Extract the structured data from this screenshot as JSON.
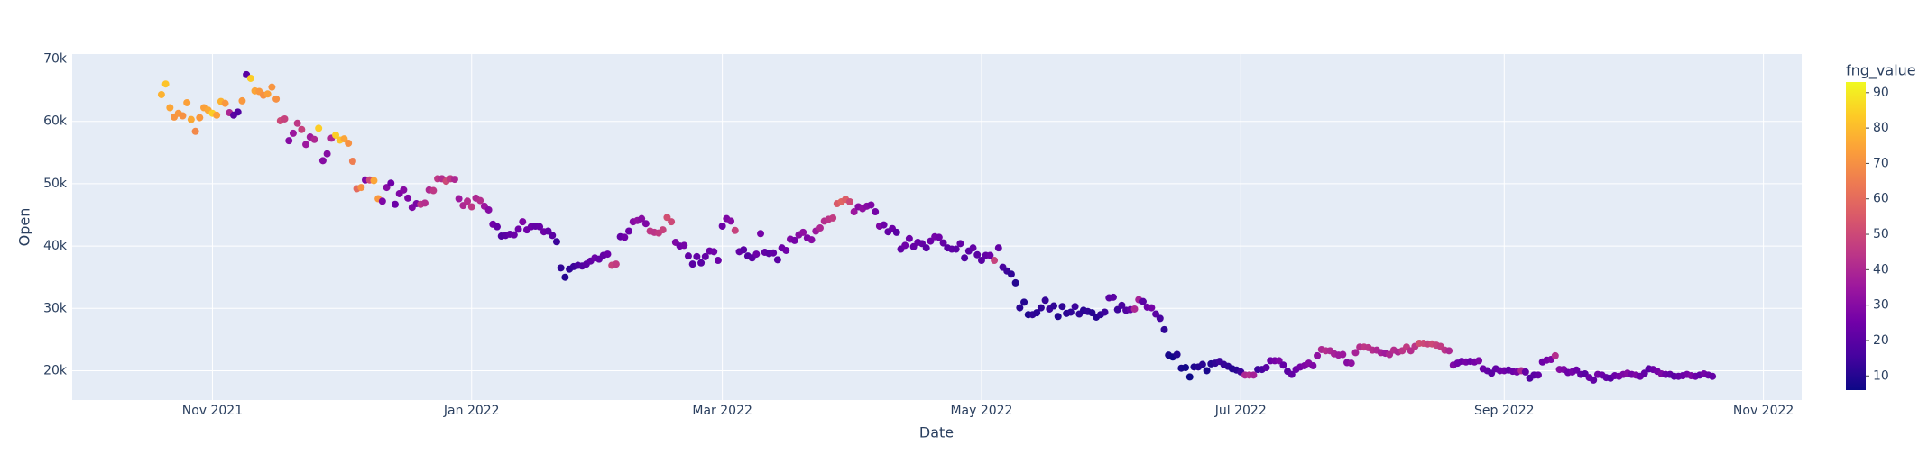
{
  "chart_data": {
    "type": "scatter",
    "x_label": "Date",
    "y_label": "Open",
    "colorbar_title": "fng_value",
    "grid": true,
    "xlim": [
      "2021-09-29",
      "2022-11-10"
    ],
    "xticks": [
      {
        "value": "2021-11-01",
        "label": "Nov 2021"
      },
      {
        "value": "2022-01-01",
        "label": "Jan 2022"
      },
      {
        "value": "2022-03-01",
        "label": "Mar 2022"
      },
      {
        "value": "2022-05-01",
        "label": "May 2022"
      },
      {
        "value": "2022-07-01",
        "label": "Jul 2022"
      },
      {
        "value": "2022-09-01",
        "label": "Sep 2022"
      },
      {
        "value": "2022-11-01",
        "label": "Nov 2022"
      }
    ],
    "ylim": [
      15300,
      70800
    ],
    "yticks": [
      {
        "value": 20000,
        "label": "20k"
      },
      {
        "value": 30000,
        "label": "30k"
      },
      {
        "value": 40000,
        "label": "40k"
      },
      {
        "value": 50000,
        "label": "50k"
      },
      {
        "value": 60000,
        "label": "60k"
      },
      {
        "value": 70000,
        "label": "70k"
      }
    ],
    "clim": [
      6,
      93
    ],
    "colorbar_ticks": [
      10,
      20,
      30,
      40,
      50,
      60,
      70,
      80,
      90
    ],
    "colorscale": [
      "#0d0887",
      "#46039f",
      "#7201a8",
      "#9c179e",
      "#bd3786",
      "#d8576b",
      "#ed7953",
      "#fb9f3a",
      "#fdca26",
      "#f0f921"
    ],
    "x": [
      "2021-10-20",
      "2021-10-21",
      "2021-10-22",
      "2021-10-23",
      "2021-10-24",
      "2021-10-25",
      "2021-10-26",
      "2021-10-27",
      "2021-10-28",
      "2021-10-29",
      "2021-10-30",
      "2021-10-31",
      "2021-11-01",
      "2021-11-02",
      "2021-11-03",
      "2021-11-04",
      "2021-11-05",
      "2021-11-06",
      "2021-11-07",
      "2021-11-08",
      "2021-11-09",
      "2021-11-10",
      "2021-11-11",
      "2021-11-12",
      "2021-11-13",
      "2021-11-14",
      "2021-11-15",
      "2021-11-16",
      "2021-11-17",
      "2021-11-18",
      "2021-11-19",
      "2021-11-20",
      "2021-11-21",
      "2021-11-22",
      "2021-11-23",
      "2021-11-24",
      "2021-11-25",
      "2021-11-26",
      "2021-11-27",
      "2021-11-28",
      "2021-11-29",
      "2021-11-30",
      "2021-12-01",
      "2021-12-02",
      "2021-12-03",
      "2021-12-04",
      "2021-12-05",
      "2021-12-06",
      "2021-12-07",
      "2021-12-08",
      "2021-12-09",
      "2021-12-10",
      "2021-12-11",
      "2021-12-12",
      "2021-12-13",
      "2021-12-14",
      "2021-12-15",
      "2021-12-16",
      "2021-12-17",
      "2021-12-18",
      "2021-12-19",
      "2021-12-20",
      "2021-12-21",
      "2021-12-22",
      "2021-12-23",
      "2021-12-24",
      "2021-12-25",
      "2021-12-26",
      "2021-12-27",
      "2021-12-28",
      "2021-12-29",
      "2021-12-30",
      "2021-12-31",
      "2022-01-01",
      "2022-01-02",
      "2022-01-03",
      "2022-01-04",
      "2022-01-05",
      "2022-01-06",
      "2022-01-07",
      "2022-01-08",
      "2022-01-09",
      "2022-01-10",
      "2022-01-11",
      "2022-01-12",
      "2022-01-13",
      "2022-01-14",
      "2022-01-15",
      "2022-01-16",
      "2022-01-17",
      "2022-01-18",
      "2022-01-19",
      "2022-01-20",
      "2022-01-21",
      "2022-01-22",
      "2022-01-23",
      "2022-01-24",
      "2022-01-25",
      "2022-01-26",
      "2022-01-27",
      "2022-01-28",
      "2022-01-29",
      "2022-01-30",
      "2022-01-31",
      "2022-02-01",
      "2022-02-02",
      "2022-02-03",
      "2022-02-04",
      "2022-02-05",
      "2022-02-06",
      "2022-02-07",
      "2022-02-08",
      "2022-02-09",
      "2022-02-10",
      "2022-02-11",
      "2022-02-12",
      "2022-02-13",
      "2022-02-14",
      "2022-02-15",
      "2022-02-16",
      "2022-02-17",
      "2022-02-18",
      "2022-02-19",
      "2022-02-20",
      "2022-02-21",
      "2022-02-22",
      "2022-02-23",
      "2022-02-24",
      "2022-02-25",
      "2022-02-26",
      "2022-02-27",
      "2022-02-28",
      "2022-03-01",
      "2022-03-02",
      "2022-03-03",
      "2022-03-04",
      "2022-03-05",
      "2022-03-06",
      "2022-03-07",
      "2022-03-08",
      "2022-03-09",
      "2022-03-10",
      "2022-03-11",
      "2022-03-12",
      "2022-03-13",
      "2022-03-14",
      "2022-03-15",
      "2022-03-16",
      "2022-03-17",
      "2022-03-18",
      "2022-03-19",
      "2022-03-20",
      "2022-03-21",
      "2022-03-22",
      "2022-03-23",
      "2022-03-24",
      "2022-03-25",
      "2022-03-26",
      "2022-03-27",
      "2022-03-28",
      "2022-03-29",
      "2022-03-30",
      "2022-03-31",
      "2022-04-01",
      "2022-04-02",
      "2022-04-03",
      "2022-04-04",
      "2022-04-05",
      "2022-04-06",
      "2022-04-07",
      "2022-04-08",
      "2022-04-09",
      "2022-04-10",
      "2022-04-11",
      "2022-04-12",
      "2022-04-13",
      "2022-04-14",
      "2022-04-15",
      "2022-04-16",
      "2022-04-17",
      "2022-04-18",
      "2022-04-19",
      "2022-04-20",
      "2022-04-21",
      "2022-04-22",
      "2022-04-23",
      "2022-04-24",
      "2022-04-25",
      "2022-04-26",
      "2022-04-27",
      "2022-04-28",
      "2022-04-29",
      "2022-04-30",
      "2022-05-01",
      "2022-05-02",
      "2022-05-03",
      "2022-05-04",
      "2022-05-05",
      "2022-05-06",
      "2022-05-07",
      "2022-05-08",
      "2022-05-09",
      "2022-05-10",
      "2022-05-11",
      "2022-05-12",
      "2022-05-13",
      "2022-05-14",
      "2022-05-15",
      "2022-05-16",
      "2022-05-17",
      "2022-05-18",
      "2022-05-19",
      "2022-05-20",
      "2022-05-21",
      "2022-05-22",
      "2022-05-23",
      "2022-05-24",
      "2022-05-25",
      "2022-05-26",
      "2022-05-27",
      "2022-05-28",
      "2022-05-29",
      "2022-05-30",
      "2022-05-31",
      "2022-06-01",
      "2022-06-02",
      "2022-06-03",
      "2022-06-04",
      "2022-06-05",
      "2022-06-06",
      "2022-06-07",
      "2022-06-08",
      "2022-06-09",
      "2022-06-10",
      "2022-06-11",
      "2022-06-12",
      "2022-06-13",
      "2022-06-14",
      "2022-06-15",
      "2022-06-16",
      "2022-06-17",
      "2022-06-18",
      "2022-06-19",
      "2022-06-20",
      "2022-06-21",
      "2022-06-22",
      "2022-06-23",
      "2022-06-24",
      "2022-06-25",
      "2022-06-26",
      "2022-06-27",
      "2022-06-28",
      "2022-06-29",
      "2022-06-30",
      "2022-07-01",
      "2022-07-02",
      "2022-07-03",
      "2022-07-04",
      "2022-07-05",
      "2022-07-06",
      "2022-07-07",
      "2022-07-08",
      "2022-07-09",
      "2022-07-10",
      "2022-07-11",
      "2022-07-12",
      "2022-07-13",
      "2022-07-14",
      "2022-07-15",
      "2022-07-16",
      "2022-07-17",
      "2022-07-18",
      "2022-07-19",
      "2022-07-20",
      "2022-07-21",
      "2022-07-22",
      "2022-07-23",
      "2022-07-24",
      "2022-07-25",
      "2022-07-26",
      "2022-07-27",
      "2022-07-28",
      "2022-07-29",
      "2022-07-30",
      "2022-07-31",
      "2022-08-01",
      "2022-08-02",
      "2022-08-03",
      "2022-08-04",
      "2022-08-05",
      "2022-08-06",
      "2022-08-07",
      "2022-08-08",
      "2022-08-09",
      "2022-08-10",
      "2022-08-11",
      "2022-08-12",
      "2022-08-13",
      "2022-08-14",
      "2022-08-15",
      "2022-08-16",
      "2022-08-17",
      "2022-08-18",
      "2022-08-19",
      "2022-08-20",
      "2022-08-21",
      "2022-08-22",
      "2022-08-23",
      "2022-08-24",
      "2022-08-25",
      "2022-08-26",
      "2022-08-27",
      "2022-08-28",
      "2022-08-29",
      "2022-08-30",
      "2022-08-31",
      "2022-09-01",
      "2022-09-02",
      "2022-09-03",
      "2022-09-04",
      "2022-09-05",
      "2022-09-06",
      "2022-09-07",
      "2022-09-08",
      "2022-09-09",
      "2022-09-10",
      "2022-09-11",
      "2022-09-12",
      "2022-09-13",
      "2022-09-14",
      "2022-09-15",
      "2022-09-16",
      "2022-09-17",
      "2022-09-18",
      "2022-09-19",
      "2022-09-20",
      "2022-09-21",
      "2022-09-22",
      "2022-09-23",
      "2022-09-24",
      "2022-09-25",
      "2022-09-26",
      "2022-09-27",
      "2022-09-28",
      "2022-09-29",
      "2022-09-30",
      "2022-10-01",
      "2022-10-02",
      "2022-10-03",
      "2022-10-04",
      "2022-10-05",
      "2022-10-06",
      "2022-10-07",
      "2022-10-08",
      "2022-10-09",
      "2022-10-10",
      "2022-10-11",
      "2022-10-12",
      "2022-10-13",
      "2022-10-14",
      "2022-10-15",
      "2022-10-16",
      "2022-10-17",
      "2022-10-18",
      "2022-10-19",
      "2022-10-20"
    ],
    "values": [
      64300,
      66000,
      62200,
      60700,
      61300,
      60900,
      63000,
      60300,
      58400,
      60600,
      62200,
      61800,
      61300,
      61000,
      63200,
      62900,
      61400,
      61000,
      61500,
      63300,
      67500,
      66900,
      64900,
      64800,
      64200,
      64400,
      65500,
      63600,
      60100,
      60400,
      56900,
      58100,
      59700,
      58700,
      56300,
      57500,
      57100,
      58900,
      53700,
      54800,
      57300,
      57800,
      57000,
      57200,
      56500,
      53600,
      49200,
      49400,
      50600,
      50600,
      50500,
      47600,
      47200,
      49400,
      50100,
      46700,
      48400,
      49000,
      47700,
      46200,
      46800,
      46700,
      46900,
      49000,
      48900,
      50800,
      50800,
      50400,
      50800,
      50700,
      47600,
      46500,
      47200,
      46300,
      47700,
      47300,
      46400,
      45800,
      43500,
      43100,
      41600,
      41700,
      41900,
      41800,
      42700,
      43900,
      42600,
      43100,
      43200,
      43100,
      42300,
      42400,
      41700,
      40700,
      36500,
      35000,
      36300,
      36700,
      36900,
      36800,
      37100,
      37600,
      38100,
      37900,
      38500,
      38700,
      36900,
      37100,
      41500,
      41400,
      42400,
      43900,
      44100,
      44400,
      43600,
      42400,
      42200,
      42100,
      42600,
      44600,
      43900,
      40600,
      40000,
      40100,
      38400,
      37100,
      38300,
      37300,
      38300,
      39200,
      39100,
      37700,
      43200,
      44400,
      44000,
      42500,
      39100,
      39400,
      38400,
      38100,
      38700,
      42000,
      39000,
      38800,
      38900,
      37800,
      39700,
      39300,
      41100,
      40900,
      41800,
      42200,
      41300,
      41000,
      42400,
      42900,
      44000,
      44300,
      44500,
      46800,
      47100,
      47500,
      47100,
      45500,
      46300,
      46000,
      46400,
      46600,
      45500,
      43200,
      43400,
      42300,
      42800,
      42200,
      39500,
      40100,
      41200,
      39900,
      40600,
      40400,
      39700,
      40800,
      41500,
      41400,
      40500,
      39700,
      39500,
      39500,
      40400,
      38100,
      39200,
      39700,
      38600,
      37700,
      38500,
      38500,
      37700,
      39700,
      36600,
      36000,
      35500,
      34100,
      30100,
      31000,
      29000,
      29000,
      29300,
      30100,
      31300,
      29900,
      30400,
      28700,
      30300,
      29200,
      29400,
      30300,
      29100,
      29700,
      29500,
      29300,
      28600,
      29000,
      29400,
      31700,
      31800,
      29800,
      30500,
      29700,
      29800,
      29900,
      31400,
      31100,
      30200,
      30100,
      29100,
      28400,
      26600,
      22500,
      22200,
      22600,
      20400,
      20500,
      19000,
      20600,
      20600,
      21000,
      20000,
      21100,
      21200,
      21500,
      21000,
      20700,
      20300,
      20100,
      19800,
      19300,
      19300,
      19300,
      20200,
      20200,
      20500,
      21600,
      21600,
      21600,
      20900,
      19900,
      19400,
      20200,
      20600,
      20800,
      21200,
      20800,
      22400,
      23400,
      23200,
      23200,
      22700,
      22500,
      22600,
      21300,
      21200,
      22900,
      23800,
      23800,
      23700,
      23300,
      23300,
      22900,
      22800,
      22600,
      23300,
      23000,
      23200,
      23800,
      23200,
      23900,
      24400,
      24400,
      24300,
      24300,
      24100,
      23900,
      23300,
      23200,
      20900,
      21200,
      21500,
      21400,
      21500,
      21400,
      21600,
      20300,
      20000,
      19600,
      20300,
      20000,
      20000,
      20100,
      19900,
      19800,
      20000,
      19800,
      18800,
      19300,
      19300,
      21400,
      21700,
      21800,
      22400,
      20200,
      20200,
      19700,
      19800,
      20100,
      19400,
      19500,
      18900,
      18500,
      19400,
      19300,
      18900,
      18800,
      19200,
      19100,
      19400,
      19600,
      19400,
      19300,
      19100,
      19600,
      20300,
      20200,
      19900,
      19500,
      19400,
      19400,
      19100,
      19100,
      19200,
      19400,
      19200,
      19100,
      19300,
      19500,
      19300,
      19100
    ],
    "color_values": [
      78,
      82,
      75,
      71,
      72,
      70,
      74,
      76,
      68,
      72,
      74,
      76,
      84,
      74,
      78,
      72,
      40,
      20,
      18,
      72,
      20,
      84,
      75,
      72,
      70,
      74,
      71,
      70,
      50,
      48,
      30,
      35,
      45,
      48,
      35,
      36,
      40,
      84,
      30,
      30,
      40,
      84,
      82,
      75,
      70,
      65,
      60,
      70,
      28,
      50,
      75,
      72,
      28,
      30,
      25,
      24,
      28,
      30,
      28,
      28,
      27,
      44,
      42,
      40,
      45,
      45,
      42,
      50,
      45,
      40,
      35,
      40,
      42,
      45,
      40,
      42,
      35,
      30,
      25,
      22,
      18,
      20,
      22,
      24,
      25,
      28,
      25,
      24,
      22,
      23,
      24,
      22,
      20,
      14,
      12,
      10,
      12,
      14,
      16,
      18,
      20,
      22,
      24,
      22,
      22,
      24,
      48,
      46,
      22,
      25,
      24,
      30,
      32,
      30,
      28,
      45,
      44,
      46,
      48,
      52,
      50,
      28,
      25,
      26,
      22,
      20,
      22,
      20,
      22,
      24,
      25,
      24,
      24,
      28,
      30,
      48,
      22,
      20,
      18,
      20,
      24,
      26,
      22,
      20,
      22,
      20,
      24,
      25,
      28,
      26,
      30,
      32,
      28,
      30,
      35,
      40,
      42,
      44,
      46,
      55,
      58,
      56,
      50,
      35,
      30,
      32,
      30,
      28,
      26,
      28,
      24,
      22,
      24,
      20,
      22,
      25,
      24,
      22,
      23,
      22,
      20,
      24,
      26,
      25,
      22,
      20,
      21,
      20,
      22,
      18,
      20,
      22,
      20,
      20,
      22,
      24,
      48,
      22,
      16,
      14,
      12,
      10,
      11,
      10,
      9,
      12,
      11,
      12,
      13,
      14,
      12,
      10,
      12,
      11,
      12,
      14,
      12,
      11,
      12,
      10,
      10,
      12,
      14,
      20,
      20,
      14,
      16,
      18,
      22,
      40,
      38,
      20,
      24,
      26,
      20,
      16,
      12,
      8,
      7,
      10,
      8,
      7,
      6,
      9,
      10,
      11,
      8,
      10,
      12,
      14,
      13,
      12,
      10,
      11,
      14,
      40,
      42,
      38,
      14,
      16,
      20,
      24,
      26,
      28,
      22,
      20,
      22,
      24,
      26,
      28,
      30,
      28,
      32,
      40,
      42,
      40,
      38,
      36,
      35,
      30,
      32,
      38,
      42,
      45,
      44,
      42,
      40,
      38,
      36,
      40,
      42,
      40,
      44,
      46,
      42,
      44,
      52,
      50,
      48,
      50,
      48,
      46,
      44,
      40,
      28,
      25,
      24,
      26,
      24,
      26,
      28,
      24,
      22,
      20,
      22,
      24,
      25,
      22,
      24,
      26,
      40,
      22,
      18,
      20,
      22,
      24,
      26,
      28,
      42,
      30,
      28,
      24,
      26,
      24,
      22,
      20,
      24,
      22,
      26,
      24,
      22,
      20,
      24,
      26,
      28,
      30,
      26,
      28,
      24,
      22,
      20,
      24,
      26,
      28,
      24,
      22,
      20,
      22,
      24,
      26,
      28,
      24,
      22,
      26,
      24,
      22
    ]
  }
}
